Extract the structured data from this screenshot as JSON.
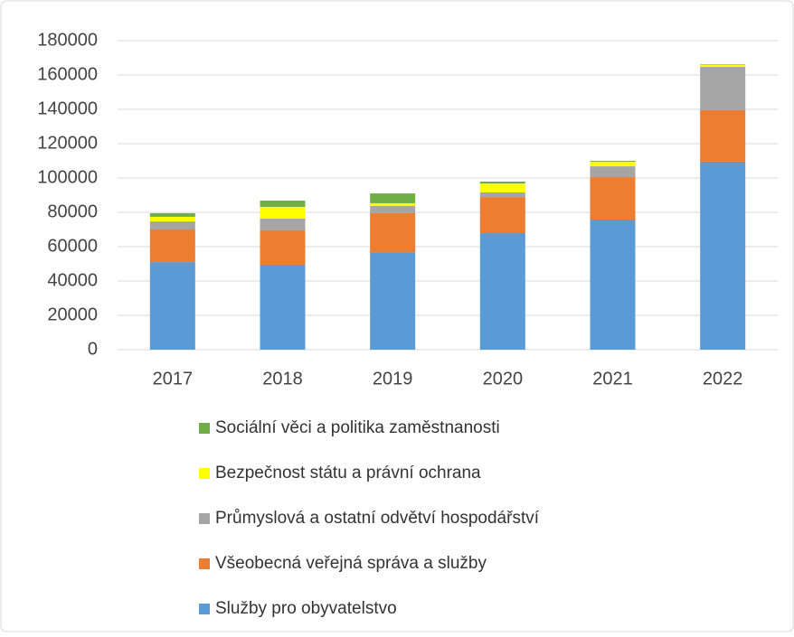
{
  "chart_data": {
    "type": "stacked_bar",
    "categories": [
      "2017",
      "2018",
      "2019",
      "2020",
      "2021",
      "2022"
    ],
    "series": [
      {
        "name": "Služby pro obyvatelstvo",
        "color": "#5b9bd5",
        "values": [
          51000,
          49500,
          56800,
          67900,
          75800,
          109500
        ]
      },
      {
        "name": "Všeobecná veřejná správa a služby",
        "color": "#ed7d31",
        "values": [
          19000,
          20000,
          22700,
          21000,
          24700,
          30000
        ]
      },
      {
        "name": "Průmyslová a ostatní odvětví hospodářství",
        "color": "#a5a5a5",
        "values": [
          4700,
          6800,
          4200,
          2700,
          6300,
          25200
        ]
      },
      {
        "name": "Bezpečnost státu a právní ochrana",
        "color": "#ffff00",
        "values": [
          2700,
          6900,
          1600,
          5200,
          2700,
          1100
        ]
      },
      {
        "name": "Sociální věci a politika zaměstnanosti",
        "color": "#70ad47",
        "values": [
          2100,
          3600,
          5700,
          1100,
          500,
          300
        ]
      }
    ],
    "ylim": [
      0,
      180000
    ],
    "yticks": [
      0,
      20000,
      40000,
      60000,
      80000,
      100000,
      120000,
      140000,
      160000,
      180000
    ],
    "grid": true,
    "legend": "bottom"
  }
}
